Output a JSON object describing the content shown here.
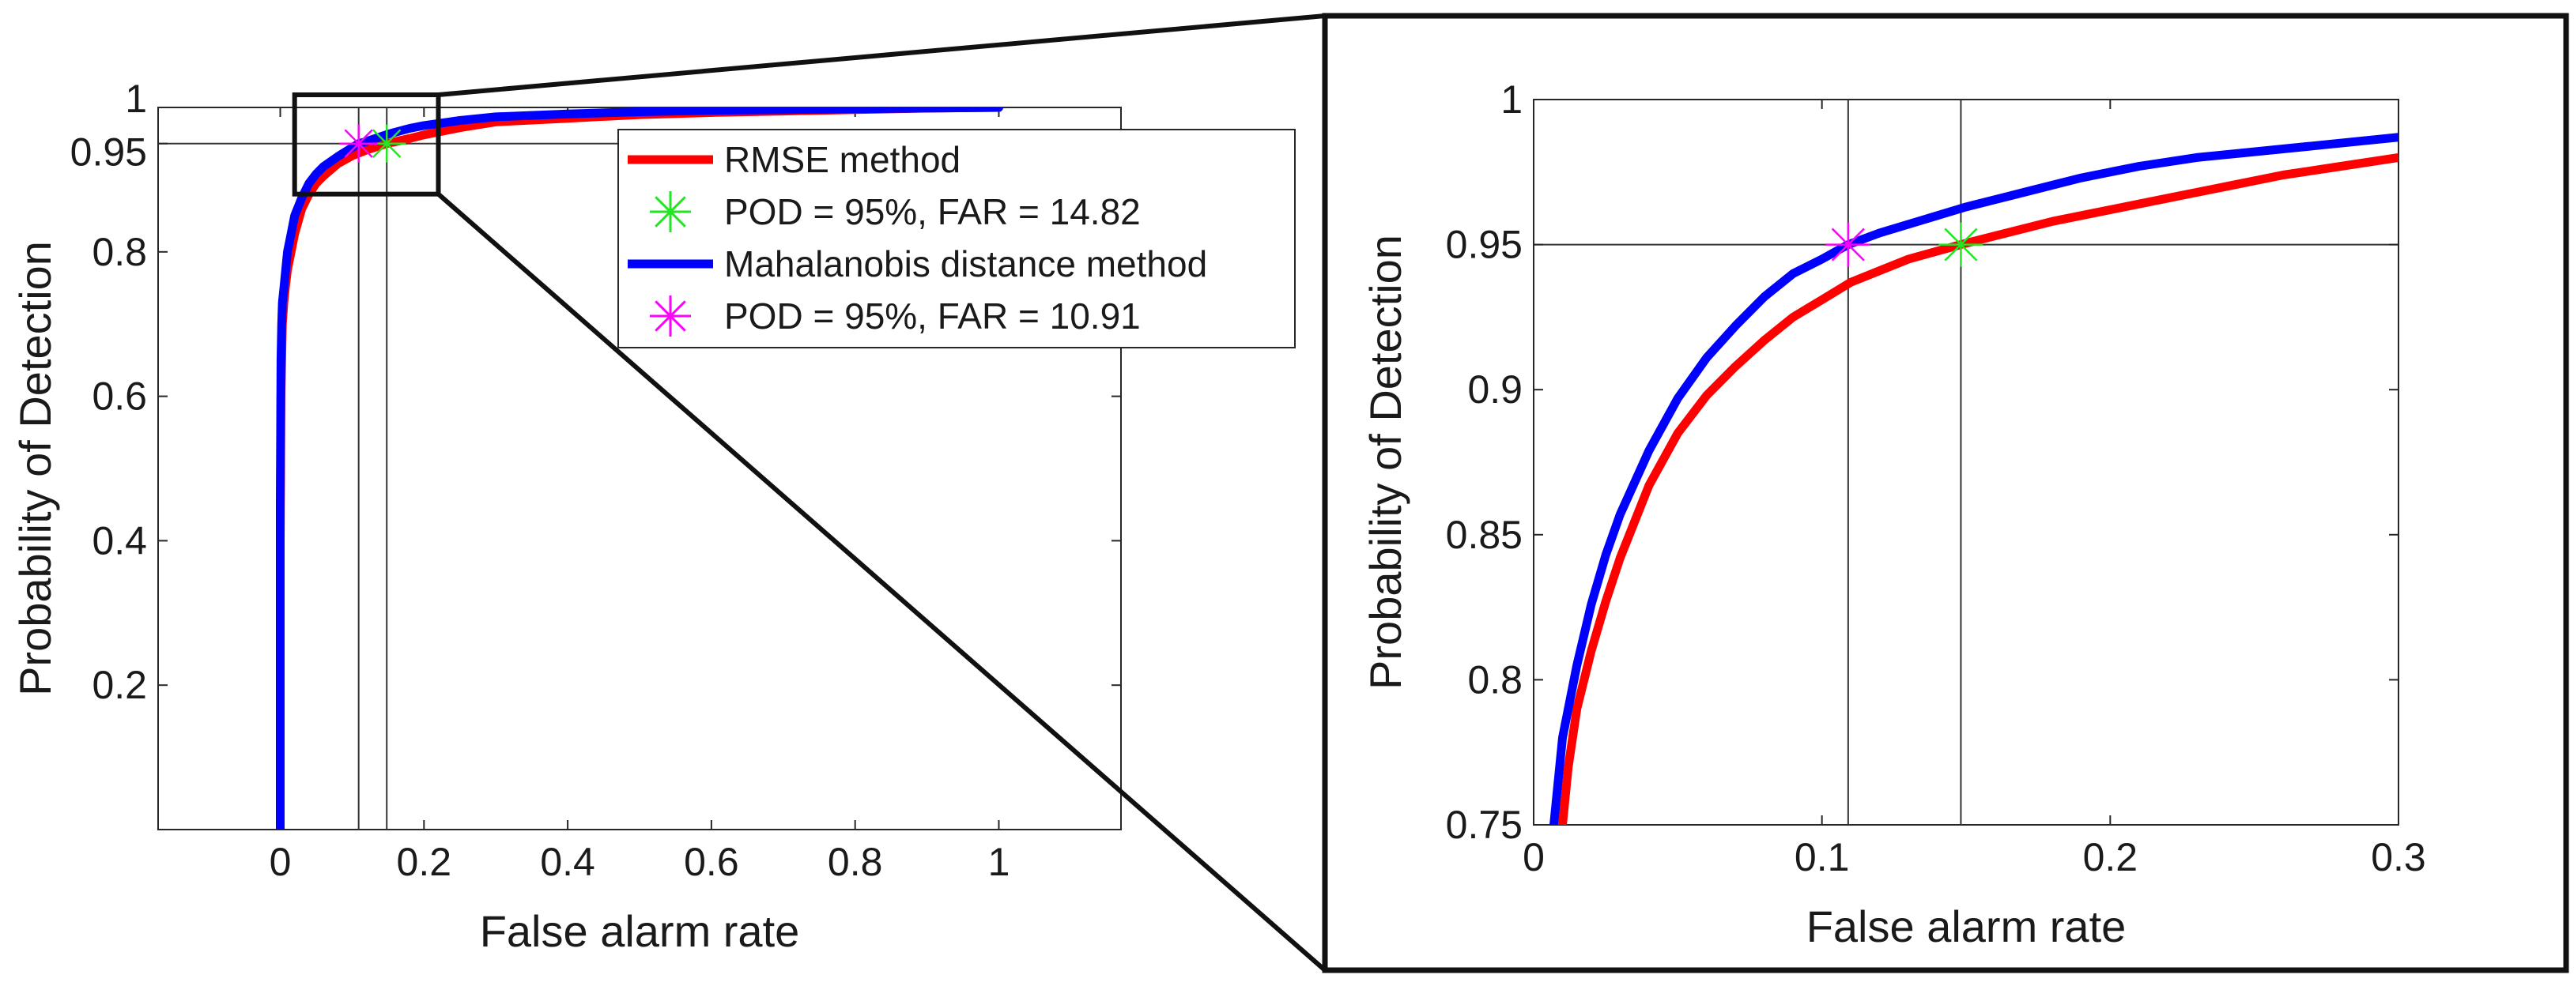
{
  "chart_data": [
    {
      "id": "overview",
      "type": "line",
      "xlabel": "False alarm rate",
      "ylabel": "Probability of Detection",
      "xlim": [
        -0.17,
        1.17
      ],
      "ylim": [
        0,
        1
      ],
      "xticks": [
        0,
        0.2,
        0.4,
        0.6,
        0.8,
        1
      ],
      "xtick_labels": [
        "0",
        "0.2",
        "0.4",
        "0.6",
        "0.8",
        "1"
      ],
      "yticks": [
        0.2,
        0.4,
        0.6,
        0.8,
        0.95,
        1
      ],
      "ytick_labels": [
        "0.2",
        "0.4",
        "0.6",
        "0.8",
        "0.95",
        "1"
      ],
      "grid": false,
      "legend_position": "top-right",
      "reference_lines": {
        "x": [
          0.1091,
          0.1482
        ],
        "y": [
          0.95
        ]
      },
      "zoom_box": {
        "x": [
          0.02,
          0.22
        ],
        "y": [
          0.88,
          1.0
        ]
      },
      "series": [
        {
          "name": "RMSE method",
          "color": "#ff0000",
          "x": [
            0,
            0,
            0.001,
            0.002,
            0.003,
            0.005,
            0.007,
            0.01,
            0.015,
            0.02,
            0.03,
            0.04,
            0.05,
            0.06,
            0.08,
            0.1,
            0.12,
            0.1482,
            0.18,
            0.2,
            0.25,
            0.3,
            0.4,
            0.5,
            0.6,
            0.7,
            0.8,
            0.9,
            1.0
          ],
          "y": [
            0,
            0.4,
            0.6,
            0.65,
            0.7,
            0.73,
            0.75,
            0.775,
            0.8,
            0.825,
            0.86,
            0.88,
            0.895,
            0.905,
            0.922,
            0.933,
            0.941,
            0.95,
            0.957,
            0.962,
            0.972,
            0.98,
            0.985,
            0.99,
            0.993,
            0.995,
            0.997,
            0.999,
            1.0
          ]
        },
        {
          "name": "Mahalanobis distance method",
          "color": "#0000ff",
          "x": [
            0,
            0,
            0.001,
            0.002,
            0.003,
            0.005,
            0.007,
            0.01,
            0.015,
            0.02,
            0.03,
            0.04,
            0.05,
            0.06,
            0.08,
            0.1091,
            0.12,
            0.15,
            0.18,
            0.2,
            0.25,
            0.3,
            0.4,
            0.5,
            0.6,
            0.7,
            0.8,
            0.9,
            1.0
          ],
          "y": [
            0,
            0.45,
            0.65,
            0.7,
            0.73,
            0.75,
            0.77,
            0.8,
            0.825,
            0.85,
            0.875,
            0.895,
            0.908,
            0.918,
            0.932,
            0.95,
            0.953,
            0.963,
            0.971,
            0.975,
            0.982,
            0.987,
            0.991,
            0.994,
            0.996,
            0.997,
            0.998,
            0.999,
            1.0
          ]
        }
      ],
      "markers": [
        {
          "name": "POD = 95%, FAR = 14.82",
          "x": 0.1482,
          "y": 0.95,
          "color": "#22e622"
        },
        {
          "name": "POD = 95%, FAR = 10.91",
          "x": 0.1091,
          "y": 0.95,
          "color": "#ff00ff"
        }
      ],
      "legend": [
        {
          "label": "RMSE method",
          "kind": "line",
          "color": "#ff0000"
        },
        {
          "label": "POD = 95%, FAR = 14.82",
          "kind": "marker",
          "color": "#22e622"
        },
        {
          "label": "Mahalanobis distance method",
          "kind": "line",
          "color": "#0000ff"
        },
        {
          "label": "POD = 95%, FAR = 10.91",
          "kind": "marker",
          "color": "#ff00ff"
        }
      ]
    },
    {
      "id": "zoom",
      "type": "line",
      "xlabel": "False alarm rate",
      "ylabel": "Probability of Detection",
      "xlim": [
        0,
        0.3
      ],
      "ylim": [
        0.75,
        1
      ],
      "xticks": [
        0,
        0.1,
        0.2,
        0.3
      ],
      "xtick_labels": [
        "0",
        "0.1",
        "0.2",
        "0.3"
      ],
      "yticks": [
        0.75,
        0.8,
        0.85,
        0.9,
        0.95,
        1
      ],
      "ytick_labels": [
        "0.75",
        "0.8",
        "0.85",
        "0.9",
        "0.95",
        "1"
      ],
      "grid": false,
      "reference_lines": {
        "x": [
          0.1091,
          0.1482
        ],
        "y": [
          0.95
        ]
      },
      "series": [
        {
          "name": "RMSE method",
          "color": "#ff0000",
          "x": [
            0.01,
            0.012,
            0.015,
            0.02,
            0.025,
            0.03,
            0.04,
            0.05,
            0.06,
            0.07,
            0.08,
            0.09,
            0.1,
            0.11,
            0.12,
            0.13,
            0.1482,
            0.16,
            0.18,
            0.2,
            0.22,
            0.24,
            0.26,
            0.28,
            0.3
          ],
          "y": [
            0.75,
            0.77,
            0.79,
            0.81,
            0.827,
            0.842,
            0.867,
            0.885,
            0.898,
            0.908,
            0.917,
            0.925,
            0.931,
            0.937,
            0.941,
            0.945,
            0.95,
            0.953,
            0.958,
            0.962,
            0.966,
            0.97,
            0.974,
            0.977,
            0.98
          ]
        },
        {
          "name": "Mahalanobis distance method",
          "color": "#0000ff",
          "x": [
            0.007,
            0.01,
            0.015,
            0.02,
            0.025,
            0.03,
            0.04,
            0.05,
            0.06,
            0.07,
            0.08,
            0.09,
            0.1,
            0.1091,
            0.12,
            0.13,
            0.15,
            0.17,
            0.19,
            0.21,
            0.23,
            0.25,
            0.27,
            0.3
          ],
          "y": [
            0.75,
            0.78,
            0.805,
            0.826,
            0.843,
            0.857,
            0.879,
            0.897,
            0.911,
            0.922,
            0.932,
            0.94,
            0.945,
            0.95,
            0.954,
            0.957,
            0.963,
            0.968,
            0.973,
            0.977,
            0.98,
            0.982,
            0.984,
            0.987
          ]
        }
      ],
      "markers": [
        {
          "name": "POD = 95%, FAR = 14.82",
          "x": 0.1482,
          "y": 0.95,
          "color": "#22e622"
        },
        {
          "name": "POD = 95%, FAR = 10.91",
          "x": 0.1091,
          "y": 0.95,
          "color": "#ff00ff"
        }
      ]
    }
  ]
}
